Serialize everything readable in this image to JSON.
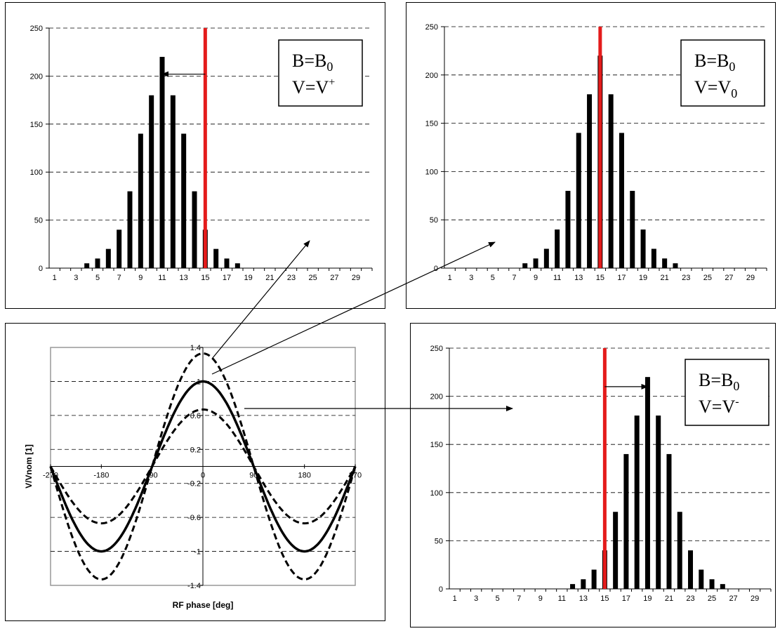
{
  "chart_data": [
    {
      "type": "bar",
      "panel": "top-left",
      "categories": [
        1,
        2,
        3,
        4,
        5,
        6,
        7,
        8,
        9,
        10,
        11,
        12,
        13,
        14,
        15,
        16,
        17,
        18,
        19,
        20,
        21,
        22,
        23,
        24,
        25,
        26,
        27,
        28,
        29,
        30
      ],
      "values": [
        0,
        0,
        0,
        5,
        10,
        20,
        40,
        80,
        140,
        180,
        220,
        180,
        140,
        80,
        40,
        20,
        10,
        5,
        0,
        0,
        0,
        0,
        0,
        0,
        0,
        0,
        0,
        0,
        0,
        0
      ],
      "x_tick_labels": [
        "1",
        "3",
        "5",
        "7",
        "9",
        "11",
        "13",
        "15",
        "17",
        "19",
        "21",
        "23",
        "25",
        "27",
        "29"
      ],
      "y_ticks": [
        "0",
        "50",
        "100",
        "150",
        "200",
        "250"
      ],
      "ylim": [
        0,
        250
      ],
      "grid": true,
      "marker_x": 15,
      "arrow": {
        "from_x": 15,
        "to_x": 11,
        "y": 202
      },
      "annotation": {
        "line1_main": "B=B",
        "line1_sub": "0",
        "line2_main": "V=V",
        "line2_sup": "+",
        "line2_sub": ""
      }
    },
    {
      "type": "bar",
      "panel": "top-right",
      "categories": [
        1,
        2,
        3,
        4,
        5,
        6,
        7,
        8,
        9,
        10,
        11,
        12,
        13,
        14,
        15,
        16,
        17,
        18,
        19,
        20,
        21,
        22,
        23,
        24,
        25,
        26,
        27,
        28,
        29,
        30
      ],
      "values": [
        0,
        0,
        0,
        0,
        0,
        0,
        0,
        5,
        10,
        20,
        40,
        80,
        140,
        180,
        220,
        180,
        140,
        80,
        40,
        20,
        10,
        5,
        0,
        0,
        0,
        0,
        0,
        0,
        0,
        0
      ],
      "x_tick_labels": [
        "1",
        "3",
        "5",
        "7",
        "9",
        "11",
        "13",
        "15",
        "17",
        "19",
        "21",
        "23",
        "25",
        "27",
        "29"
      ],
      "y_ticks": [
        "0",
        "50",
        "100",
        "150",
        "200",
        "250"
      ],
      "ylim": [
        0,
        250
      ],
      "grid": true,
      "marker_x": 15,
      "annotation": {
        "line1_main": "B=B",
        "line1_sub": "0",
        "line2_main": "V=V",
        "line2_sup": "",
        "line2_sub": "0"
      }
    },
    {
      "type": "bar",
      "panel": "bottom-right",
      "categories": [
        1,
        2,
        3,
        4,
        5,
        6,
        7,
        8,
        9,
        10,
        11,
        12,
        13,
        14,
        15,
        16,
        17,
        18,
        19,
        20,
        21,
        22,
        23,
        24,
        25,
        26,
        27,
        28,
        29,
        30
      ],
      "values": [
        0,
        0,
        0,
        0,
        0,
        0,
        0,
        0,
        0,
        0,
        0,
        5,
        10,
        20,
        40,
        80,
        140,
        180,
        220,
        180,
        140,
        80,
        40,
        20,
        10,
        5,
        0,
        0,
        0,
        0
      ],
      "x_tick_labels": [
        "1",
        "3",
        "5",
        "7",
        "9",
        "11",
        "13",
        "15",
        "17",
        "19",
        "21",
        "23",
        "25",
        "27",
        "29"
      ],
      "y_ticks": [
        "0",
        "50",
        "100",
        "150",
        "200",
        "250"
      ],
      "ylim": [
        0,
        250
      ],
      "grid": true,
      "marker_x": 15,
      "arrow": {
        "from_x": 15,
        "to_x": 19,
        "y": 210
      },
      "annotation": {
        "line1_main": "B=B",
        "line1_sub": "0",
        "line2_main": "V=V",
        "line2_sup": "-",
        "line2_sub": ""
      }
    },
    {
      "type": "line",
      "panel": "bottom-left",
      "xlim": [
        -270,
        270
      ],
      "ylim": [
        -1.4,
        1.4
      ],
      "x_ticks": [
        -270,
        -180,
        -90,
        0,
        90,
        180,
        270
      ],
      "x_tick_labels": [
        "-270",
        "-180",
        "-90",
        "0",
        "90",
        "180",
        "270"
      ],
      "y_ticks": [
        1.4,
        1,
        0.6,
        0.2,
        -0.2,
        -0.6,
        -1,
        -1.4
      ],
      "y_tick_labels": [
        "1.4",
        "1",
        "0.6",
        "0.2",
        "-0.2",
        "-0.6",
        "-1",
        "-1.4"
      ],
      "xlabel": "RF phase [deg]",
      "ylabel": "V/Vnom [1]",
      "grid": true,
      "series": [
        {
          "amplitude": 1.33,
          "style": "dashed"
        },
        {
          "amplitude": 1.0,
          "style": "solid"
        },
        {
          "amplitude": 0.67,
          "style": "dashed"
        }
      ]
    }
  ],
  "connectors": [
    {
      "from": "peak-upper",
      "to": "top-left"
    },
    {
      "from": "peak-mid",
      "to": "top-right"
    },
    {
      "from": "peak-lower",
      "to": "bottom-right"
    }
  ]
}
